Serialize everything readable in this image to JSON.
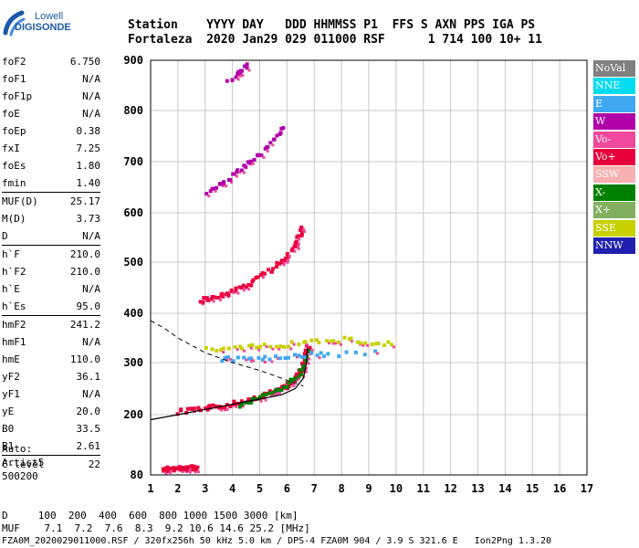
{
  "logo": {
    "line1": "Lowell",
    "line2": "DIGISONDE"
  },
  "header": {
    "row1": "Station    YYYY DAY   DDD HHMMSS P1  FFS S AXN PPS IGA PS",
    "row2": "Fortaleza  2020 Jan29 029 011000 RSF      1 714 100 10+ 11"
  },
  "params": [
    {
      "name": "foF2",
      "value": "6.750"
    },
    {
      "name": "foF1",
      "value": "N/A"
    },
    {
      "name": "foF1p",
      "value": "N/A"
    },
    {
      "name": "foE",
      "value": "N/A"
    },
    {
      "name": "foEp",
      "value": "0.38"
    },
    {
      "name": "fxI",
      "value": "7.25"
    },
    {
      "name": "foEs",
      "value": "1.80"
    },
    {
      "name": "fmin",
      "value": "1.40"
    },
    {
      "name": "MUF(D)",
      "value": "25.17",
      "sep": true
    },
    {
      "name": "M(D)",
      "value": "3.73"
    },
    {
      "name": "D",
      "value": "N/A"
    },
    {
      "name": "h`F",
      "value": "210.0",
      "sep": true
    },
    {
      "name": "h`F2",
      "value": "210.0"
    },
    {
      "name": "h`E",
      "value": "N/A"
    },
    {
      "name": "h`Es",
      "value": "95.0"
    },
    {
      "name": "hmF2",
      "value": "241.2",
      "sep": true
    },
    {
      "name": "hmF1",
      "value": "N/A"
    },
    {
      "name": "hmE",
      "value": "110.0"
    },
    {
      "name": "yF2",
      "value": "36.1"
    },
    {
      "name": "yF1",
      "value": "N/A"
    },
    {
      "name": "yE",
      "value": "20.0"
    },
    {
      "name": "B0",
      "value": "33.5"
    },
    {
      "name": "B1",
      "value": "2.61"
    },
    {
      "name": "C-level",
      "value": "22",
      "sep": true
    }
  ],
  "auto": {
    "line1": "Auto:",
    "line2": "Artist5",
    "line3": "500200"
  },
  "legend": [
    {
      "label": "NoVal",
      "color": "#808080"
    },
    {
      "label": "NNE",
      "color": "#00dcf0"
    },
    {
      "label": "E",
      "color": "#40a8f0"
    },
    {
      "label": "W",
      "color": "#b000a8"
    },
    {
      "label": "Vo-",
      "color": "#f0489c"
    },
    {
      "label": "Vo+",
      "color": "#e8003c"
    },
    {
      "label": "SSW",
      "color": "#f8b0b0"
    },
    {
      "label": "X-",
      "color": "#008000"
    },
    {
      "label": "X+",
      "color": "#80b060"
    },
    {
      "label": "SSE",
      "color": "#c8d000"
    },
    {
      "label": "NNW",
      "color": "#2020b0"
    }
  ],
  "bottom": {
    "d_row": "D     100  200  400  600  800 1000 1500 3000 [km]",
    "muf_row": "MUF    7.1  7.2  7.6  8.3  9.2 10.6 14.6 25.2 [MHz]",
    "footer": "FZA0M_2020029011000.RSF / 320fx256h 50 kHz 5.0 km / DPS-4 FZA0M 904 / 3.9 S 321.6 E   Ion2Png 1.3.20"
  },
  "chart_data": {
    "type": "scatter",
    "xlim": [
      1,
      17
    ],
    "ylim": [
      80,
      900
    ],
    "x_ticks": [
      1,
      2,
      3,
      4,
      5,
      6,
      7,
      8,
      9,
      10,
      11,
      12,
      13,
      14,
      15,
      16,
      17
    ],
    "y_ticks": [
      80,
      200,
      300,
      400,
      500,
      600,
      700,
      800,
      900
    ],
    "grid": true,
    "traces": [
      {
        "name": "Es",
        "color": "#e8003c",
        "points": [
          [
            1.4,
            95
          ],
          [
            1.6,
            95
          ],
          [
            1.8,
            96
          ],
          [
            2.0,
            96
          ],
          [
            2.2,
            97
          ],
          [
            2.4,
            98
          ],
          [
            2.7,
            96
          ]
        ]
      },
      {
        "name": "F2-O",
        "color": "#e8003c",
        "points": [
          [
            1.9,
            208
          ],
          [
            2.5,
            212
          ],
          [
            3.0,
            215
          ],
          [
            3.5,
            220
          ],
          [
            4.0,
            225
          ],
          [
            4.5,
            230
          ],
          [
            5.0,
            238
          ],
          [
            5.5,
            248
          ],
          [
            5.9,
            258
          ],
          [
            6.2,
            270
          ],
          [
            6.4,
            285
          ],
          [
            6.55,
            300
          ],
          [
            6.65,
            320
          ],
          [
            6.72,
            340
          ]
        ]
      },
      {
        "name": "F2-X",
        "color": "#008000",
        "points": [
          [
            4.2,
            222
          ],
          [
            4.8,
            232
          ],
          [
            5.4,
            245
          ],
          [
            5.9,
            258
          ],
          [
            6.3,
            275
          ],
          [
            6.6,
            300
          ],
          [
            6.8,
            330
          ]
        ]
      },
      {
        "name": "F2-multi",
        "color": "#e8003c",
        "points": [
          [
            2.8,
            428
          ],
          [
            3.2,
            432
          ],
          [
            3.6,
            440
          ],
          [
            4.0,
            448
          ],
          [
            4.5,
            460
          ],
          [
            5.0,
            475
          ],
          [
            5.5,
            495
          ],
          [
            5.9,
            515
          ],
          [
            6.2,
            535
          ],
          [
            6.4,
            555
          ],
          [
            6.55,
            575
          ]
        ]
      },
      {
        "name": "F2-third",
        "color": "#b000a8",
        "points": [
          [
            3.0,
            640
          ],
          [
            3.5,
            660
          ],
          [
            4.0,
            678
          ],
          [
            4.5,
            700
          ],
          [
            5.0,
            720
          ],
          [
            5.5,
            748
          ],
          [
            5.9,
            775
          ]
        ]
      },
      {
        "name": "F2-fourth",
        "color": "#b000a8",
        "points": [
          [
            3.8,
            860
          ],
          [
            4.2,
            880
          ],
          [
            4.6,
            898
          ]
        ]
      },
      {
        "name": "Spread",
        "color": "#c8d000",
        "points": [
          [
            3.0,
            330
          ],
          [
            4.0,
            335
          ],
          [
            5.0,
            338
          ],
          [
            6.0,
            340
          ],
          [
            7.0,
            345
          ],
          [
            8.0,
            350
          ],
          [
            9.0,
            345
          ],
          [
            10.0,
            340
          ]
        ]
      },
      {
        "name": "Spread-E",
        "color": "#40a8f0",
        "points": [
          [
            3.5,
            310
          ],
          [
            4.5,
            312
          ],
          [
            5.5,
            314
          ],
          [
            6.5,
            318
          ],
          [
            7.5,
            320
          ],
          [
            9.5,
            325
          ]
        ]
      }
    ],
    "profile": [
      [
        1.0,
        190
      ],
      [
        2.0,
        200
      ],
      [
        3.0,
        210
      ],
      [
        4.0,
        220
      ],
      [
        5.0,
        230
      ],
      [
        5.8,
        238
      ],
      [
        6.3,
        250
      ],
      [
        6.6,
        270
      ],
      [
        6.72,
        300
      ],
      [
        6.75,
        330
      ]
    ],
    "dashed_curve": [
      [
        1.0,
        385
      ],
      [
        1.5,
        370
      ],
      [
        2.0,
        350
      ],
      [
        2.5,
        335
      ],
      [
        3.0,
        320
      ],
      [
        4.0,
        300
      ],
      [
        5.0,
        285
      ],
      [
        5.8,
        270
      ],
      [
        6.3,
        260
      ],
      [
        6.6,
        255
      ]
    ]
  }
}
